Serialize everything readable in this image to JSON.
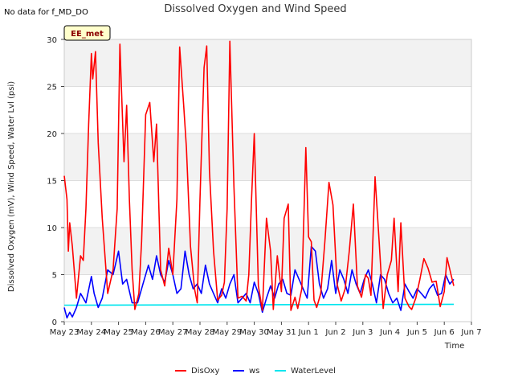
{
  "no_data_note": "No data for f_MD_DO",
  "station_badge": "EE_met",
  "chart_data": {
    "type": "line",
    "title": "Dissolved Oxygen and Wind Speed",
    "xlabel": "Time",
    "ylabel": "Dissolved Oxygen (mV), Wind Speed, Water Lvl (psi)",
    "xlim": [
      0,
      15
    ],
    "ylim": [
      0,
      30
    ],
    "x_ticks": [
      "May 23",
      "May 24",
      "May 25",
      "May 26",
      "May 27",
      "May 28",
      "May 29",
      "May 30",
      "May 31",
      "Jun 1",
      "Jun 2",
      "Jun 3",
      "Jun 4",
      "Jun 5",
      "Jun 6",
      "Jun 7"
    ],
    "y_ticks": [
      0,
      5,
      10,
      15,
      20,
      25,
      30
    ],
    "grid": "horizontal bands",
    "legend_position": "bottom",
    "series": [
      {
        "name": "DisOxy",
        "color": "#ff0000",
        "x": [
          0.0,
          0.1,
          0.15,
          0.2,
          0.3,
          0.45,
          0.6,
          0.7,
          0.8,
          0.9,
          1.0,
          1.05,
          1.15,
          1.25,
          1.4,
          1.6,
          1.8,
          1.95,
          2.05,
          2.2,
          2.3,
          2.4,
          2.5,
          2.6,
          2.75,
          2.85,
          3.0,
          3.15,
          3.3,
          3.4,
          3.55,
          3.7,
          3.85,
          4.0,
          4.15,
          4.25,
          4.4,
          4.5,
          4.65,
          4.8,
          4.9,
          5.0,
          5.15,
          5.25,
          5.35,
          5.5,
          5.65,
          5.8,
          5.9,
          6.0,
          6.1,
          6.25,
          6.4,
          6.55,
          6.7,
          6.8,
          6.9,
          7.0,
          7.15,
          7.3,
          7.45,
          7.6,
          7.7,
          7.85,
          8.0,
          8.1,
          8.25,
          8.35,
          8.5,
          8.6,
          8.75,
          8.9,
          9.0,
          9.1,
          9.2,
          9.3,
          9.45,
          9.6,
          9.75,
          9.9,
          10.05,
          10.2,
          10.35,
          10.5,
          10.65,
          10.8,
          10.95,
          11.1,
          11.2,
          11.3,
          11.45,
          11.6,
          11.75,
          11.9,
          12.05,
          12.15,
          12.3,
          12.4,
          12.55,
          12.7,
          12.8,
          12.95,
          13.1,
          13.25,
          13.4,
          13.55,
          13.7,
          13.85,
          14.0,
          14.1,
          14.25,
          14.35
        ],
        "values": [
          15.5,
          13.0,
          7.5,
          10.5,
          8.0,
          2.5,
          7.0,
          6.5,
          12.0,
          21.0,
          28.5,
          25.8,
          28.7,
          19.0,
          11.0,
          3.0,
          5.5,
          12.0,
          29.5,
          17.0,
          23.0,
          13.0,
          5.5,
          1.3,
          3.0,
          8.5,
          22.0,
          23.3,
          17.0,
          21.0,
          5.5,
          3.8,
          7.8,
          5.0,
          13.0,
          29.2,
          23.0,
          18.5,
          8.0,
          3.5,
          2.0,
          13.0,
          27.0,
          29.3,
          16.0,
          7.5,
          2.3,
          2.8,
          4.2,
          12.0,
          29.8,
          14.3,
          2.5,
          2.7,
          2.2,
          5.0,
          13.0,
          20.0,
          3.8,
          1.2,
          11.0,
          7.5,
          1.3,
          7.0,
          3.2,
          11.0,
          12.5,
          1.2,
          2.6,
          1.4,
          3.5,
          18.5,
          9.0,
          8.5,
          2.3,
          1.5,
          3.0,
          8.5,
          14.8,
          12.4,
          4.0,
          2.2,
          3.5,
          7.5,
          12.5,
          3.8,
          2.6,
          5.0,
          4.6,
          2.8,
          15.4,
          8.5,
          1.4,
          5.0,
          6.5,
          11.0,
          3.2,
          10.5,
          2.5,
          1.6,
          1.3,
          2.5,
          4.5,
          6.7,
          5.7,
          4.2,
          4.3,
          1.6,
          3.2,
          6.8,
          5.0,
          3.8
        ]
      },
      {
        "name": "ws",
        "color": "#0000ff",
        "x": [
          0.0,
          0.1,
          0.2,
          0.3,
          0.45,
          0.6,
          0.8,
          1.0,
          1.1,
          1.25,
          1.4,
          1.6,
          1.8,
          2.0,
          2.15,
          2.3,
          2.5,
          2.7,
          2.9,
          3.1,
          3.25,
          3.4,
          3.55,
          3.7,
          3.85,
          4.0,
          4.15,
          4.3,
          4.45,
          4.6,
          4.75,
          4.9,
          5.05,
          5.2,
          5.35,
          5.5,
          5.65,
          5.8,
          5.95,
          6.1,
          6.25,
          6.4,
          6.55,
          6.7,
          6.85,
          7.0,
          7.15,
          7.3,
          7.45,
          7.6,
          7.75,
          7.9,
          8.05,
          8.2,
          8.35,
          8.5,
          8.65,
          8.8,
          8.95,
          9.1,
          9.25,
          9.4,
          9.55,
          9.7,
          9.85,
          10.0,
          10.15,
          10.3,
          10.45,
          10.6,
          10.75,
          10.9,
          11.05,
          11.2,
          11.35,
          11.5,
          11.65,
          11.8,
          11.95,
          12.1,
          12.25,
          12.4,
          12.55,
          12.7,
          12.85,
          13.0,
          13.15,
          13.3,
          13.45,
          13.6,
          13.75,
          13.9,
          14.05,
          14.2,
          14.35
        ],
        "values": [
          1.5,
          0.4,
          1.0,
          0.5,
          1.5,
          3.0,
          2.0,
          4.8,
          3.0,
          1.5,
          2.5,
          5.5,
          5.0,
          7.5,
          4.0,
          4.5,
          2.0,
          2.0,
          4.0,
          6.0,
          4.5,
          7.0,
          5.0,
          4.2,
          6.5,
          5.0,
          3.0,
          3.5,
          7.5,
          5.0,
          3.5,
          4.0,
          3.0,
          6.0,
          4.0,
          3.0,
          2.0,
          3.5,
          2.5,
          4.0,
          5.0,
          2.0,
          2.5,
          3.0,
          2.0,
          4.2,
          3.0,
          1.0,
          2.5,
          3.8,
          2.5,
          4.0,
          4.5,
          3.0,
          2.8,
          5.5,
          4.5,
          3.5,
          2.5,
          8.0,
          7.5,
          4.0,
          2.5,
          3.5,
          6.5,
          3.0,
          5.5,
          4.5,
          3.0,
          5.5,
          4.0,
          3.0,
          4.5,
          5.5,
          4.0,
          2.0,
          5.0,
          4.5,
          3.0,
          2.0,
          2.5,
          1.2,
          4.0,
          3.2,
          2.5,
          3.5,
          3.0,
          2.5,
          3.5,
          4.0,
          2.8,
          3.0,
          5.0,
          4.0,
          4.5
        ]
      },
      {
        "name": "WaterLevel",
        "color": "#00e5ee",
        "x": [
          0.0,
          14.35
        ],
        "values": [
          1.75,
          1.85
        ]
      }
    ]
  }
}
